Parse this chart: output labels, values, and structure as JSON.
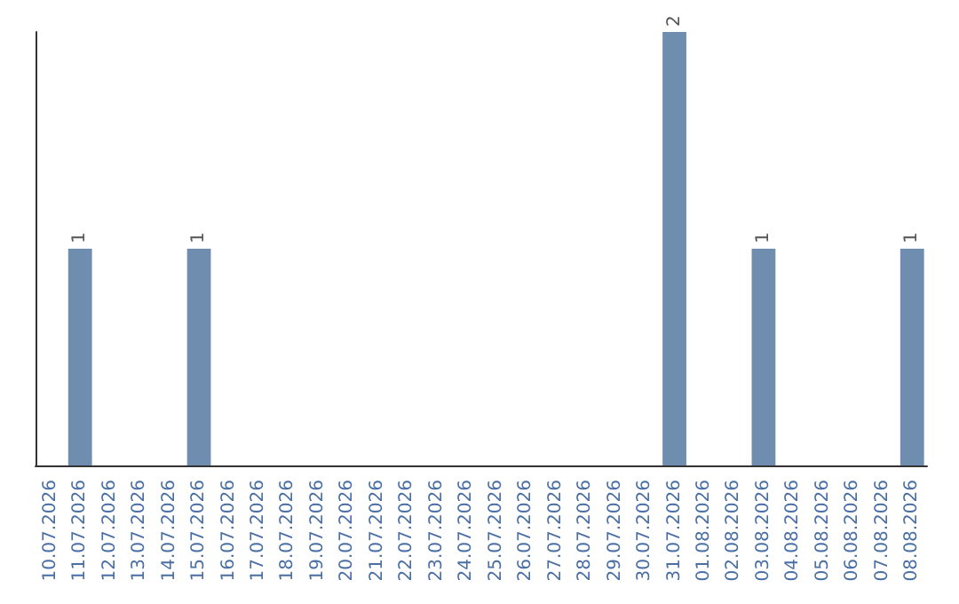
{
  "chart_data": {
    "type": "bar",
    "categories": [
      "10.07.2026",
      "11.07.2026",
      "12.07.2026",
      "13.07.2026",
      "14.07.2026",
      "15.07.2026",
      "16.07.2026",
      "17.07.2026",
      "18.07.2026",
      "19.07.2026",
      "20.07.2026",
      "21.07.2026",
      "22.07.2026",
      "23.07.2026",
      "24.07.2026",
      "25.07.2026",
      "26.07.2026",
      "27.07.2026",
      "28.07.2026",
      "29.07.2026",
      "30.07.2026",
      "31.07.2026",
      "01.08.2026",
      "02.08.2026",
      "03.08.2026",
      "04.08.2026",
      "05.08.2026",
      "06.08.2026",
      "07.08.2026",
      "08.08.2026"
    ],
    "values": [
      0,
      1,
      0,
      0,
      0,
      1,
      0,
      0,
      0,
      0,
      0,
      0,
      0,
      0,
      0,
      0,
      0,
      0,
      0,
      0,
      0,
      2,
      0,
      0,
      1,
      0,
      0,
      0,
      0,
      1
    ],
    "value_labels": [
      null,
      "1",
      null,
      null,
      null,
      "1",
      null,
      null,
      null,
      null,
      null,
      null,
      null,
      null,
      null,
      null,
      null,
      null,
      null,
      null,
      null,
      "2",
      null,
      null,
      "1",
      null,
      null,
      null,
      null,
      "1"
    ],
    "color": "#6e8daf",
    "grid": false,
    "tick_labels": "x"
  }
}
